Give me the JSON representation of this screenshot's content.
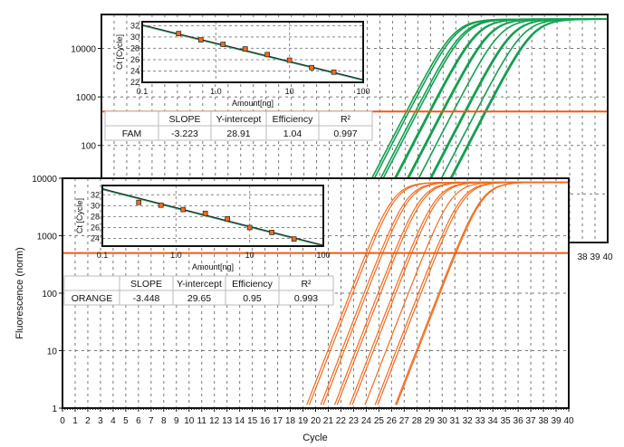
{
  "chart_data": [
    {
      "type": "line",
      "panel": "back",
      "dye": "FAM",
      "y_scale": "log",
      "xlim": [
        0,
        40
      ],
      "ylim": [
        1,
        50000
      ],
      "y_ticks": [
        "10000",
        "1000",
        "100"
      ],
      "x_ticks_visible": [
        "38",
        "39",
        "40"
      ],
      "grid": true,
      "threshold": 500,
      "threshold_color": "#f05a14",
      "curve_color": "#13a050",
      "plateau": 40000,
      "ct_values": [
        24.1,
        24.3,
        24.8,
        25.0,
        25.9,
        26.0,
        26.9,
        27.0,
        27.8,
        28.7,
        28.8,
        29.6,
        30.3,
        30.4
      ],
      "inset": {
        "type": "scatter",
        "xlabel": "Amount[ng]",
        "ylabel": "Ct [Cycle]",
        "x_scale": "log",
        "xlim": [
          0.1,
          100
        ],
        "ylim": [
          22,
          32.7
        ],
        "x_ticks": [
          "0.1",
          "1.0",
          "10",
          "100"
        ],
        "y_ticks": [
          "22",
          "24",
          "26",
          "28",
          "30",
          "32"
        ],
        "amounts": [
          0.3125,
          0.625,
          1.25,
          2.5,
          5,
          10,
          20,
          40
        ],
        "ct": [
          30.6,
          29.5,
          28.7,
          27.9,
          26.9,
          25.9,
          24.6,
          23.8
        ],
        "fit": {
          "slope": -3.223,
          "intercept": 28.91
        }
      },
      "table": {
        "headers": [
          "",
          "SLOPE",
          "Y-intercept",
          "Efficiency",
          "R²"
        ],
        "row": [
          "FAM",
          "-3.223",
          "28.91",
          "1.04",
          "0.997"
        ]
      }
    },
    {
      "type": "line",
      "panel": "front",
      "dye": "ORANGE",
      "y_scale": "log",
      "xlim": [
        0,
        40
      ],
      "ylim": [
        1,
        10000
      ],
      "xlabel": "Cycle",
      "ylabel": "Fluorescence (norm)",
      "y_ticks": [
        "10000",
        "1000",
        "100",
        "10",
        "1"
      ],
      "x_ticks": [
        "0",
        "1",
        "2",
        "3",
        "4",
        "5",
        "6",
        "7",
        "8",
        "9",
        "10",
        "11",
        "12",
        "13",
        "14",
        "15",
        "16",
        "17",
        "18",
        "19",
        "20",
        "21",
        "22",
        "23",
        "24",
        "25",
        "26",
        "27",
        "28",
        "29",
        "30",
        "31",
        "32",
        "33",
        "34",
        "35",
        "36",
        "37",
        "38",
        "39",
        "40"
      ],
      "grid": true,
      "threshold": 500,
      "threshold_color": "#f05a14",
      "curve_color": "#f26b1d",
      "plateau": 8500,
      "ct_values": [
        24.0,
        24.2,
        25.1,
        25.3,
        26.2,
        26.4,
        27.4,
        27.6,
        28.6,
        29.4,
        29.6,
        31.0,
        31.1
      ],
      "inset": {
        "type": "scatter",
        "xlabel": "Amount[ng]",
        "ylabel": "Ct [Cycle]",
        "x_scale": "log",
        "xlim": [
          0.1,
          100
        ],
        "ylim": [
          22.6,
          33.7
        ],
        "x_ticks": [
          "0.1",
          "1.0",
          "10",
          "100"
        ],
        "y_ticks": [
          "24",
          "26",
          "28",
          "30",
          "32"
        ],
        "amounts": [
          0.3125,
          0.625,
          1.25,
          2.5,
          5,
          10,
          20,
          40
        ],
        "ct": [
          30.6,
          30.1,
          29.3,
          28.6,
          27.6,
          26.0,
          25.1,
          23.9
        ],
        "fit": {
          "slope": -3.448,
          "intercept": 29.65
        }
      },
      "table": {
        "headers": [
          "",
          "SLOPE",
          "Y-intercept",
          "Efficiency",
          "R²"
        ],
        "row": [
          "ORANGE",
          "-3.448",
          "29.65",
          "0.95",
          "0.993"
        ]
      }
    }
  ]
}
